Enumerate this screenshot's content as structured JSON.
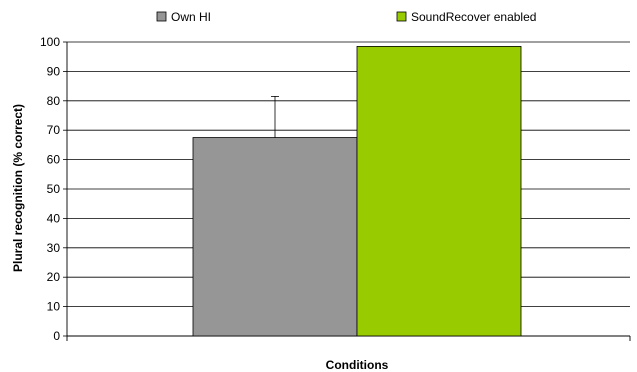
{
  "chart_data": {
    "type": "bar",
    "xlabel": "Conditions",
    "ylabel": "Plural recognition (% correct)",
    "ylim": [
      0,
      100
    ],
    "yticks": [
      0,
      10,
      20,
      30,
      40,
      50,
      60,
      70,
      80,
      90,
      100
    ],
    "grid": "horizontal",
    "legend_placement": "top",
    "series": [
      {
        "name": "Own HI",
        "value": 67.5,
        "error_plus": 14,
        "color": "#969696"
      },
      {
        "name": "SoundRecover enabled",
        "value": 98.5,
        "error_plus": 0,
        "color": "#99cc00"
      }
    ]
  }
}
